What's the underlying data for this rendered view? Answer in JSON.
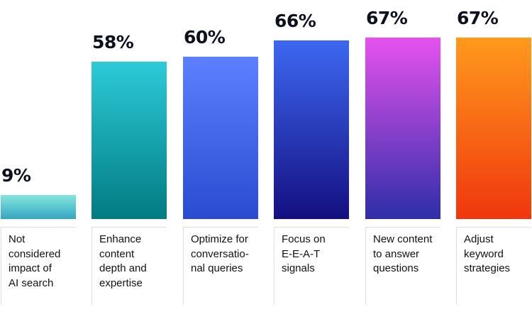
{
  "chart_data": {
    "type": "bar",
    "title": "",
    "xlabel": "",
    "ylabel": "",
    "ylim": [
      0,
      67
    ],
    "grid": false,
    "categories": [
      "Not\nconsidered\nimpact of\nAI search",
      "Enhance\ncontent\ndepth and\nexpertise",
      "Optimize for\nconversatio-\nnal queries",
      "Focus on\nE-E-A-T\nsignals",
      "New content\nto answer\nquestions",
      "Adjust\nkeyword\nstrategies"
    ],
    "values": [
      9,
      58,
      60,
      66,
      67,
      67
    ],
    "data_labels": [
      "9%",
      "58%",
      "60%",
      "66%",
      "67%",
      "67%"
    ],
    "colors": [
      [
        "#84e6dc",
        "#35a6c2"
      ],
      [
        "#2ccbd8",
        "#017b82"
      ],
      [
        "#5c80ff",
        "#2a4bd0"
      ],
      [
        "#3d68f2",
        "#140f80"
      ],
      [
        "#e652ee",
        "#2e2ea8"
      ],
      [
        "#ff9a1c",
        "#f0360e"
      ]
    ]
  }
}
